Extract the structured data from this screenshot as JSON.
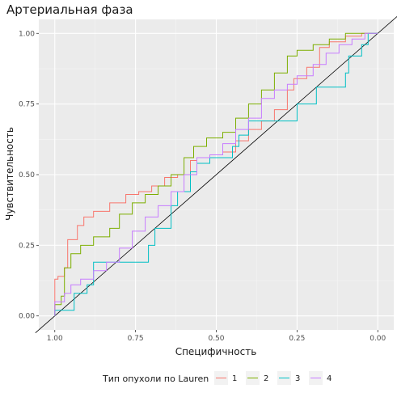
{
  "chart_data": {
    "type": "line",
    "title": "Артериальная фаза",
    "xlabel": "Специфичность",
    "ylabel": "Чувствительность",
    "x_reversed": true,
    "xlim": [
      1.0,
      0.0
    ],
    "ylim": [
      0.0,
      1.0
    ],
    "x_ticks": [
      "1.00",
      "0.75",
      "0.50",
      "0.25",
      "0.00"
    ],
    "y_ticks": [
      "0.00",
      "0.25",
      "0.50",
      "0.75",
      "1.00"
    ],
    "grid": true,
    "legend": {
      "title": "Тип опухоли по Lauren",
      "position": "bottom"
    },
    "reference_line": {
      "from": [
        1.0,
        0.0
      ],
      "to": [
        0.0,
        1.0
      ],
      "color": "#000000"
    },
    "series": [
      {
        "name": "1",
        "color": "#F8766D",
        "points": [
          [
            1.0,
            0.0
          ],
          [
            0.99,
            0.13
          ],
          [
            0.97,
            0.14
          ],
          [
            0.96,
            0.17
          ],
          [
            0.93,
            0.27
          ],
          [
            0.91,
            0.32
          ],
          [
            0.88,
            0.35
          ],
          [
            0.83,
            0.37
          ],
          [
            0.78,
            0.4
          ],
          [
            0.74,
            0.43
          ],
          [
            0.7,
            0.44
          ],
          [
            0.66,
            0.46
          ],
          [
            0.62,
            0.49
          ],
          [
            0.58,
            0.5
          ],
          [
            0.56,
            0.55
          ],
          [
            0.52,
            0.56
          ],
          [
            0.48,
            0.57
          ],
          [
            0.44,
            0.58
          ],
          [
            0.4,
            0.62
          ],
          [
            0.36,
            0.66
          ],
          [
            0.32,
            0.69
          ],
          [
            0.28,
            0.73
          ],
          [
            0.26,
            0.8
          ],
          [
            0.22,
            0.84
          ],
          [
            0.18,
            0.88
          ],
          [
            0.15,
            0.95
          ],
          [
            0.1,
            0.97
          ],
          [
            0.05,
            0.99
          ],
          [
            0.0,
            1.0
          ]
        ]
      },
      {
        "name": "2",
        "color": "#7CAE00",
        "points": [
          [
            1.0,
            0.0
          ],
          [
            0.98,
            0.04
          ],
          [
            0.97,
            0.07
          ],
          [
            0.95,
            0.17
          ],
          [
            0.92,
            0.22
          ],
          [
            0.88,
            0.25
          ],
          [
            0.83,
            0.28
          ],
          [
            0.8,
            0.31
          ],
          [
            0.76,
            0.36
          ],
          [
            0.72,
            0.4
          ],
          [
            0.68,
            0.43
          ],
          [
            0.64,
            0.46
          ],
          [
            0.6,
            0.5
          ],
          [
            0.57,
            0.56
          ],
          [
            0.53,
            0.6
          ],
          [
            0.48,
            0.63
          ],
          [
            0.44,
            0.65
          ],
          [
            0.4,
            0.7
          ],
          [
            0.36,
            0.75
          ],
          [
            0.32,
            0.8
          ],
          [
            0.28,
            0.86
          ],
          [
            0.25,
            0.92
          ],
          [
            0.2,
            0.94
          ],
          [
            0.15,
            0.96
          ],
          [
            0.1,
            0.98
          ],
          [
            0.05,
            1.0
          ],
          [
            0.0,
            1.0
          ]
        ]
      },
      {
        "name": "3",
        "color": "#00BFC4",
        "points": [
          [
            1.0,
            0.0
          ],
          [
            0.94,
            0.02
          ],
          [
            0.94,
            0.06
          ],
          [
            0.9,
            0.08
          ],
          [
            0.88,
            0.11
          ],
          [
            0.86,
            0.19
          ],
          [
            0.78,
            0.19
          ],
          [
            0.74,
            0.19
          ],
          [
            0.71,
            0.19
          ],
          [
            0.69,
            0.25
          ],
          [
            0.64,
            0.31
          ],
          [
            0.62,
            0.39
          ],
          [
            0.58,
            0.44
          ],
          [
            0.56,
            0.51
          ],
          [
            0.52,
            0.54
          ],
          [
            0.45,
            0.56
          ],
          [
            0.43,
            0.6
          ],
          [
            0.4,
            0.64
          ],
          [
            0.35,
            0.69
          ],
          [
            0.3,
            0.69
          ],
          [
            0.25,
            0.69
          ],
          [
            0.19,
            0.75
          ],
          [
            0.18,
            0.81
          ],
          [
            0.1,
            0.81
          ],
          [
            0.09,
            0.86
          ],
          [
            0.05,
            0.92
          ],
          [
            0.03,
            0.96
          ],
          [
            0.0,
            1.0
          ]
        ]
      },
      {
        "name": "4",
        "color": "#C77CFF",
        "points": [
          [
            1.0,
            0.0
          ],
          [
            0.97,
            0.05
          ],
          [
            0.95,
            0.08
          ],
          [
            0.92,
            0.11
          ],
          [
            0.88,
            0.13
          ],
          [
            0.84,
            0.16
          ],
          [
            0.8,
            0.19
          ],
          [
            0.76,
            0.24
          ],
          [
            0.72,
            0.3
          ],
          [
            0.68,
            0.35
          ],
          [
            0.64,
            0.39
          ],
          [
            0.6,
            0.44
          ],
          [
            0.56,
            0.5
          ],
          [
            0.52,
            0.56
          ],
          [
            0.48,
            0.57
          ],
          [
            0.44,
            0.61
          ],
          [
            0.4,
            0.66
          ],
          [
            0.36,
            0.7
          ],
          [
            0.32,
            0.77
          ],
          [
            0.28,
            0.8
          ],
          [
            0.25,
            0.82
          ],
          [
            0.2,
            0.85
          ],
          [
            0.16,
            0.89
          ],
          [
            0.12,
            0.93
          ],
          [
            0.08,
            0.96
          ],
          [
            0.04,
            0.98
          ],
          [
            0.0,
            1.0
          ]
        ]
      }
    ]
  }
}
